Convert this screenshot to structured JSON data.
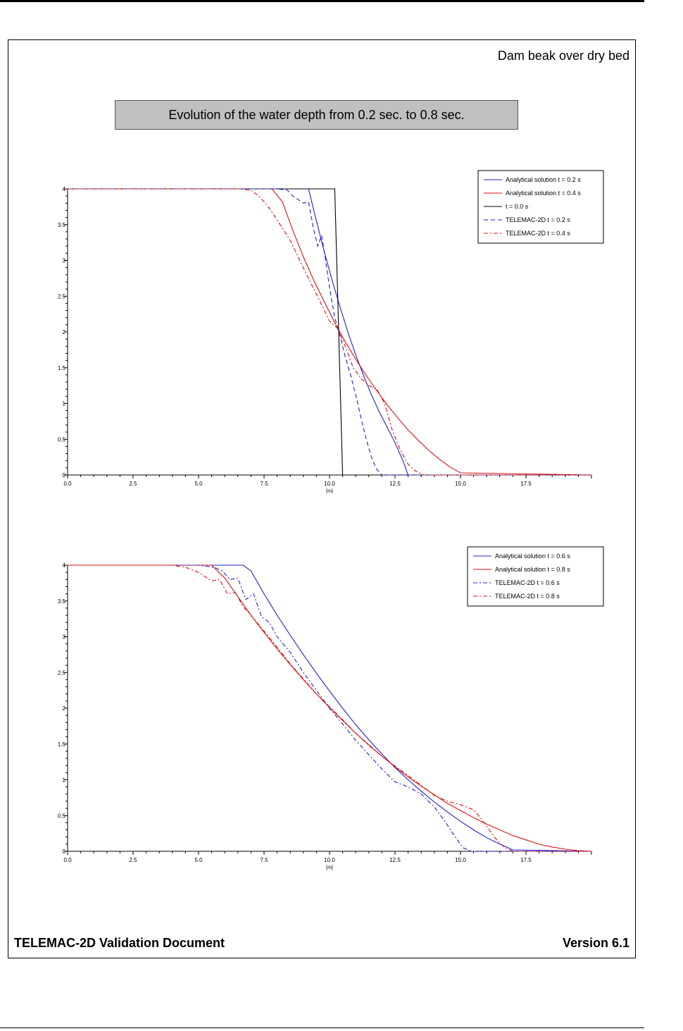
{
  "page": {
    "doc_title": "Dam beak over dry bed",
    "banner": "Evolution of the water depth from 0.2 sec. to 0.8 sec.",
    "footer_left": "TELEMAC-2D Validation Document",
    "footer_right": "Version 6.1"
  },
  "chart_data": [
    {
      "type": "line",
      "title": "",
      "xlabel": "[m]",
      "ylabel": "",
      "xlim": [
        0,
        20
      ],
      "ylim": [
        0,
        4
      ],
      "xticks": [
        "0.0",
        "2.5",
        "5.0",
        "7.5",
        "10.0",
        "12.5",
        "15.0",
        "17.5"
      ],
      "yticks": [
        "0",
        "0.5",
        "1",
        "1.5",
        "2",
        "2.5",
        "3",
        "3.5",
        "4"
      ],
      "legend_position": "top-right",
      "series": [
        {
          "name": "Analytical solution t = 0.2 s",
          "color": "#1f1fd0",
          "dash": "solid",
          "x": [
            0,
            9.2,
            9.5,
            9.8,
            10.1,
            10.4,
            10.7,
            11.0,
            11.3,
            11.6,
            11.9,
            12.2,
            12.5,
            12.8,
            13.0,
            20
          ],
          "y": [
            4,
            4,
            3.55,
            3.12,
            2.72,
            2.35,
            2.0,
            1.68,
            1.39,
            1.12,
            0.88,
            0.67,
            0.45,
            0.2,
            0.0,
            0.0
          ]
        },
        {
          "name": "Analytical solution t = 0.4 s",
          "color": "#dd1010",
          "dash": "solid",
          "x": [
            0,
            7.8,
            8.2,
            8.6,
            9.0,
            9.4,
            9.8,
            10.2,
            10.6,
            11.0,
            11.4,
            11.8,
            12.2,
            12.6,
            13.0,
            13.4,
            13.8,
            14.2,
            14.6,
            15.0,
            20
          ],
          "y": [
            4,
            4,
            3.82,
            3.42,
            3.05,
            2.72,
            2.42,
            2.13,
            1.86,
            1.62,
            1.39,
            1.18,
            0.98,
            0.8,
            0.63,
            0.48,
            0.34,
            0.22,
            0.11,
            0.03,
            0.0
          ]
        },
        {
          "name": "t = 0.0 s",
          "color": "#000000",
          "dash": "solid",
          "x": [
            0,
            10.2,
            10.5,
            20
          ],
          "y": [
            4,
            4,
            0,
            0
          ]
        },
        {
          "name": "TELEMAC-2D t = 0.2 s",
          "color": "#1f1fd0",
          "dash": "6,4",
          "x": [
            0,
            8.0,
            8.4,
            8.6,
            8.8,
            9.0,
            9.2,
            9.4,
            9.55,
            9.7,
            9.85,
            10.0,
            10.2,
            10.4,
            10.6,
            10.8,
            11.0,
            11.2,
            11.4,
            11.6,
            11.8,
            12.0,
            20
          ],
          "y": [
            4,
            4,
            3.98,
            3.9,
            3.85,
            3.8,
            3.82,
            3.42,
            3.2,
            3.35,
            3.0,
            2.62,
            2.2,
            1.95,
            1.65,
            1.4,
            1.12,
            0.8,
            0.5,
            0.25,
            0.08,
            0.0,
            0.0
          ]
        },
        {
          "name": "TELEMAC-2D t = 0.4 s",
          "color": "#dd1010",
          "dash": "6,3,2,3",
          "x": [
            0,
            6.6,
            7.0,
            7.3,
            7.6,
            7.9,
            8.2,
            8.5,
            8.8,
            9.1,
            9.4,
            9.7,
            10.0,
            10.3,
            10.6,
            10.9,
            11.2,
            11.5,
            11.8,
            12.1,
            12.4,
            12.7,
            13.0,
            13.3,
            13.6,
            20
          ],
          "y": [
            4,
            4,
            3.98,
            3.9,
            3.78,
            3.62,
            3.45,
            3.28,
            3.05,
            2.82,
            2.6,
            2.38,
            2.15,
            2.05,
            1.8,
            1.5,
            1.35,
            1.25,
            1.2,
            1.0,
            0.62,
            0.35,
            0.15,
            0.05,
            0.0,
            0.0
          ]
        }
      ]
    },
    {
      "type": "line",
      "title": "",
      "xlabel": "[m]",
      "ylabel": "",
      "xlim": [
        0,
        20
      ],
      "ylim": [
        0,
        4
      ],
      "xticks": [
        "0.0",
        "2.5",
        "5.0",
        "7.5",
        "10.0",
        "12.5",
        "15.0",
        "17.5"
      ],
      "yticks": [
        "0",
        "0.5",
        "1",
        "1.5",
        "2",
        "2.5",
        "3",
        "3.5",
        "4"
      ],
      "legend_position": "top-right",
      "series": [
        {
          "name": "Analytical solution t = 0.6 s",
          "color": "#1f1fd0",
          "dash": "solid",
          "x": [
            0,
            6.7,
            7.0,
            7.5,
            8.0,
            8.5,
            9.0,
            9.5,
            10.0,
            10.5,
            11.0,
            11.5,
            12.0,
            12.5,
            13.0,
            13.5,
            14.0,
            14.5,
            15.0,
            15.5,
            16.0,
            16.5,
            17.0,
            20
          ],
          "y": [
            4,
            4,
            3.92,
            3.6,
            3.3,
            3.02,
            2.75,
            2.49,
            2.24,
            2.0,
            1.77,
            1.56,
            1.36,
            1.17,
            1.0,
            0.84,
            0.69,
            0.55,
            0.42,
            0.3,
            0.19,
            0.1,
            0.02,
            0.0
          ]
        },
        {
          "name": "Analytical solution t = 0.8 s",
          "color": "#dd1010",
          "dash": "solid",
          "x": [
            0,
            5.5,
            6.0,
            6.5,
            7.0,
            7.5,
            8.0,
            8.5,
            9.0,
            9.5,
            10.0,
            10.5,
            11.0,
            11.5,
            12.0,
            12.5,
            13.0,
            13.5,
            14.0,
            14.5,
            15.0,
            15.5,
            16.0,
            16.5,
            17.0,
            17.5,
            18.0,
            18.5,
            19.0,
            19.5,
            20.0
          ],
          "y": [
            4,
            4,
            3.82,
            3.56,
            3.3,
            3.06,
            2.83,
            2.61,
            2.4,
            2.2,
            2.01,
            1.83,
            1.65,
            1.49,
            1.33,
            1.18,
            1.04,
            0.91,
            0.79,
            0.67,
            0.57,
            0.47,
            0.38,
            0.3,
            0.22,
            0.16,
            0.1,
            0.06,
            0.03,
            0.01,
            0.0
          ]
        },
        {
          "name": "TELEMAC-2D t = 0.6 s",
          "color": "#1f1fd0",
          "dash": "6,3,2,3",
          "x": [
            0,
            5.0,
            5.6,
            5.9,
            6.2,
            6.5,
            6.8,
            7.1,
            7.4,
            7.7,
            8.0,
            8.5,
            9.0,
            9.5,
            10.0,
            10.5,
            11.0,
            11.5,
            12.0,
            12.5,
            13.0,
            13.5,
            14.0,
            14.4,
            14.8,
            15.1,
            15.4,
            20
          ],
          "y": [
            4,
            4,
            3.97,
            3.92,
            3.8,
            3.82,
            3.52,
            3.6,
            3.28,
            3.2,
            3.0,
            2.78,
            2.5,
            2.25,
            2.0,
            1.78,
            1.55,
            1.35,
            1.15,
            0.97,
            0.9,
            0.8,
            0.62,
            0.42,
            0.2,
            0.05,
            0.0,
            0.0
          ]
        },
        {
          "name": "TELEMAC-2D t = 0.8 s",
          "color": "#dd1010",
          "dash": "6,3,2,3",
          "x": [
            0,
            4.0,
            4.5,
            5.0,
            5.2,
            5.5,
            5.8,
            6.1,
            6.4,
            6.7,
            7.0,
            7.5,
            8.0,
            8.5,
            9.0,
            9.5,
            10.0,
            10.5,
            11.0,
            11.5,
            12.0,
            12.5,
            13.0,
            13.5,
            14.0,
            14.5,
            15.0,
            15.5,
            15.8,
            16.1,
            16.4,
            16.7,
            17.0,
            20
          ],
          "y": [
            4,
            4,
            3.97,
            3.9,
            3.85,
            3.78,
            3.8,
            3.6,
            3.62,
            3.42,
            3.3,
            3.08,
            2.85,
            2.62,
            2.41,
            2.2,
            2.02,
            1.84,
            1.65,
            1.48,
            1.33,
            1.19,
            1.06,
            0.92,
            0.78,
            0.7,
            0.65,
            0.58,
            0.45,
            0.3,
            0.15,
            0.05,
            0.0,
            0.0
          ]
        }
      ]
    }
  ]
}
